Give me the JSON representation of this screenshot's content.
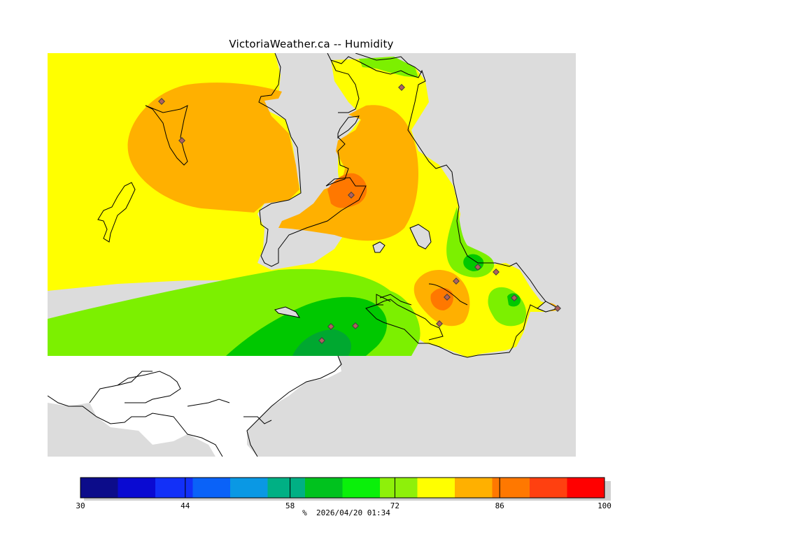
{
  "title": "VictoriaWeather.ca -- Humidity",
  "legend": {
    "ticks": [
      "30",
      "44",
      "58",
      "72",
      "86",
      "100"
    ],
    "colors": [
      "#0c0c8a",
      "#0a0ad2",
      "#1230f8",
      "#0a62f8",
      "#0a98e4",
      "#00b084",
      "#00c21e",
      "#0af00a",
      "#8ef00a",
      "#ffff00",
      "#ffb000",
      "#ff7800",
      "#ff4010",
      "#ff0000"
    ]
  },
  "footer": {
    "unit": "%",
    "timestamp": "2026/04/20 01:34"
  },
  "colors": {
    "land_background": "#ffff00",
    "water": "#dcdcdc",
    "outside_region": "#ffffff"
  }
}
